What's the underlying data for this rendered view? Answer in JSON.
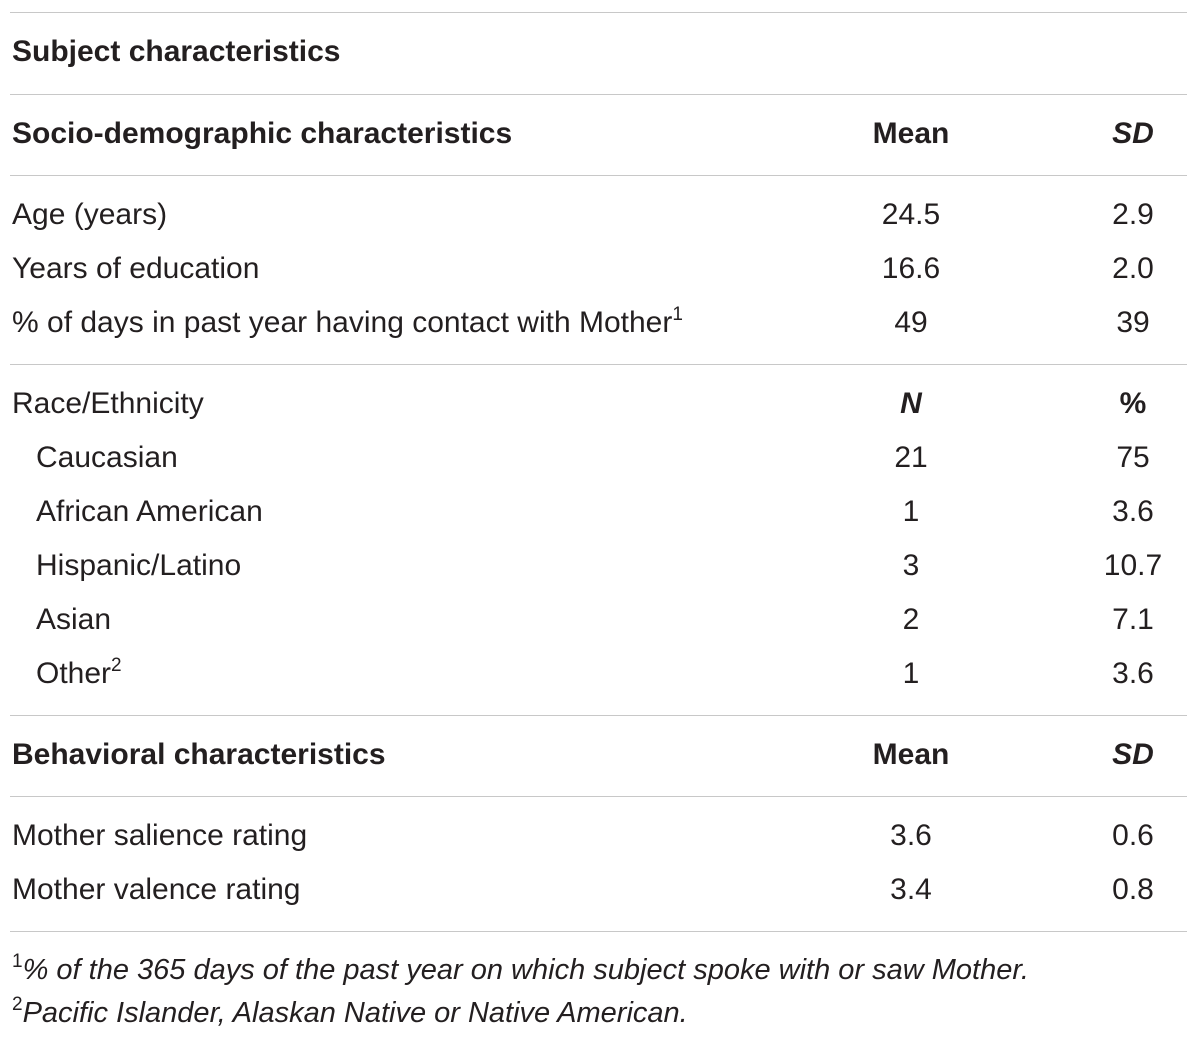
{
  "table": {
    "caption": "Subject characteristics",
    "sections": {
      "socio": {
        "header": {
          "label": "Socio-demographic characteristics",
          "col1": "Mean",
          "col2": "SD"
        },
        "rows": [
          {
            "label": "Age (years)",
            "col1": "24.5",
            "col2": "2.9"
          },
          {
            "label": "Years of education",
            "col1": "16.6",
            "col2": "2.0"
          },
          {
            "label": "% of days in past year having contact with Mother",
            "sup": "1",
            "col1": "49",
            "col2": "39"
          }
        ]
      },
      "race": {
        "header": {
          "label": "Race/Ethnicity",
          "col1": "N",
          "col2": "%"
        },
        "rows": [
          {
            "label": "Caucasian",
            "col1": "21",
            "col2": "75"
          },
          {
            "label": "African American",
            "col1": "1",
            "col2": "3.6"
          },
          {
            "label": "Hispanic/Latino",
            "col1": "3",
            "col2": "10.7"
          },
          {
            "label": "Asian",
            "col1": "2",
            "col2": "7.1"
          },
          {
            "label": "Other",
            "sup": "2",
            "col1": "1",
            "col2": "3.6"
          }
        ]
      },
      "behavioral": {
        "header": {
          "label": "Behavioral characteristics",
          "col1": "Mean",
          "col2": "SD"
        },
        "rows": [
          {
            "label": "Mother salience rating",
            "col1": "3.6",
            "col2": "0.6"
          },
          {
            "label": "Mother valence rating",
            "col1": "3.4",
            "col2": "0.8"
          }
        ]
      }
    },
    "footnotes": [
      {
        "mark": "1",
        "text": "% of the 365 days of the past year on which subject spoke with or saw Mother."
      },
      {
        "mark": "2",
        "text": "Pacific Islander, Alaskan Native or Native American."
      }
    ]
  }
}
